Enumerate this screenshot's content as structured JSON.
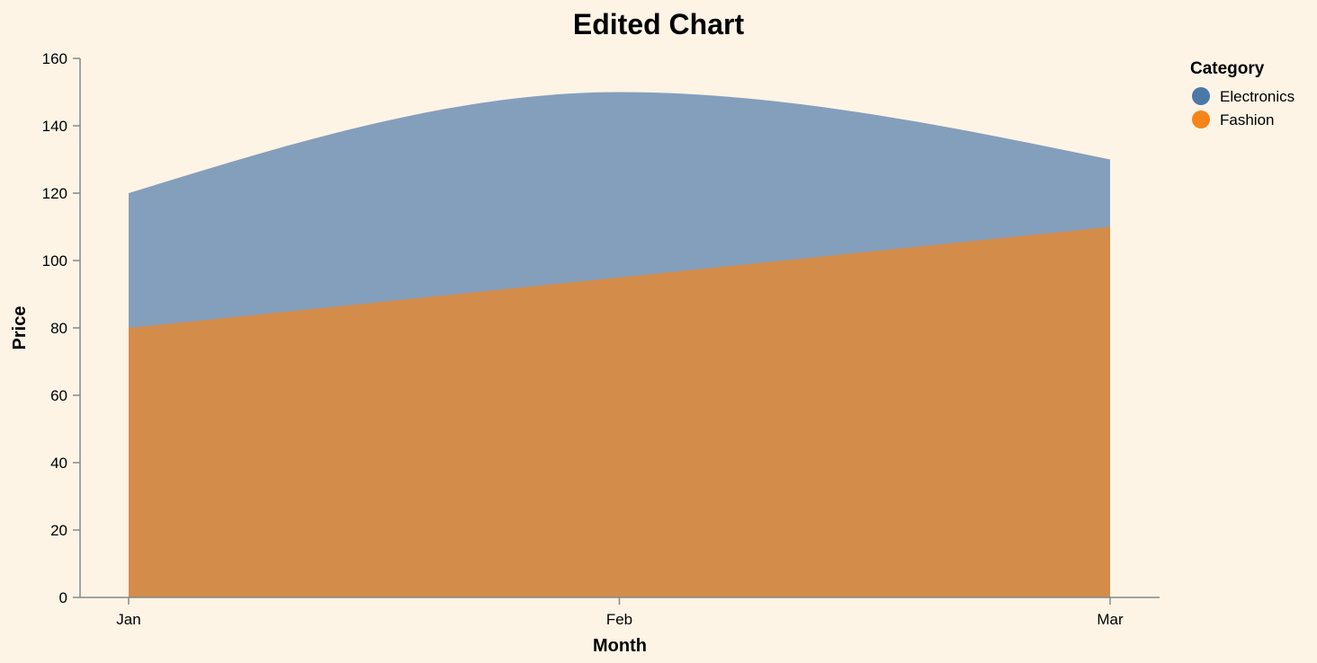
{
  "chart_data": {
    "type": "area",
    "title": "Edited Chart",
    "xlabel": "Month",
    "ylabel": "Price",
    "categories": [
      "Jan",
      "Feb",
      "Mar"
    ],
    "ylim": [
      0,
      160
    ],
    "yticks": [
      0,
      20,
      40,
      60,
      80,
      100,
      120,
      140,
      160
    ],
    "stacked": false,
    "legend": {
      "title": "Category",
      "position": "top-right"
    },
    "series": [
      {
        "name": "Electronics",
        "values": [
          120,
          150,
          130
        ],
        "color": "#4c78a8",
        "area_color": "#849fbc"
      },
      {
        "name": "Fashion",
        "values": [
          80,
          95,
          110
        ],
        "color": "#f58518",
        "area_color": "#d38c4a"
      }
    ],
    "grid": false,
    "background": "#fdf4e6"
  }
}
